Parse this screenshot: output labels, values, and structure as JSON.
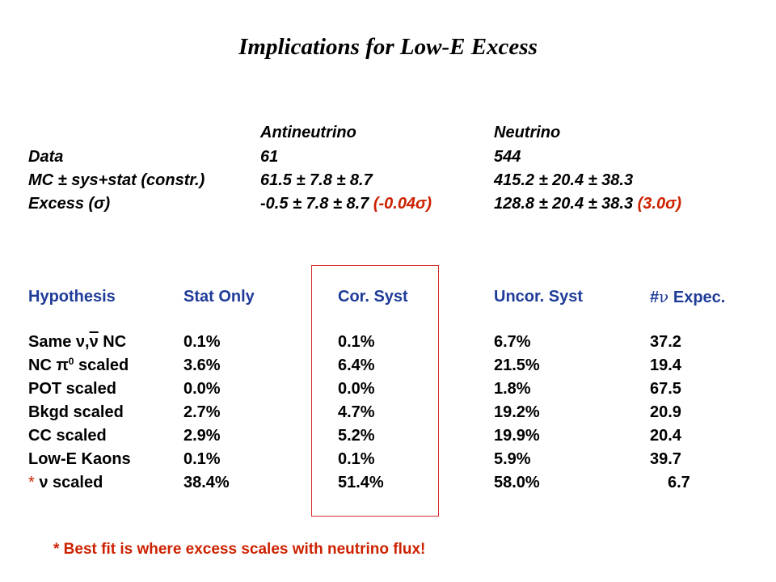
{
  "title": "Implications for Low-E Excess",
  "summary": {
    "col_headers": [
      "Antineutrino",
      "Neutrino"
    ],
    "rows": [
      {
        "label": "Data",
        "anti": "61",
        "nu": "544"
      },
      {
        "label": "MC ± sys+stat (constr.)",
        "anti": "61.5 ± 7.8 ± 8.7",
        "nu": "415.2 ± 20.4 ± 38.3"
      },
      {
        "label": "Excess (σ)",
        "anti": "-0.5 ± 7.8 ± 8.7 ",
        "anti_sig": "(-0.04σ)",
        "nu": "128.8 ± 20.4 ± 38.3 ",
        "nu_sig": "(3.0σ)"
      }
    ]
  },
  "hyp": {
    "headers": {
      "hypothesis": "Hypothesis",
      "stat": "Stat Only",
      "cor": "Cor. Syst",
      "uncor": "Uncor. Syst",
      "expec_prefix": "#",
      "expec_nu": "ν",
      "expec_suffix": " Expec."
    },
    "rows": [
      {
        "label_pre": "Same ν,",
        "label_nubar": "ν",
        "label_post": " NC",
        "stat": "0.1%",
        "cor": "0.1%",
        "uncor": "6.7%",
        "expec": "37.2"
      },
      {
        "label_pre": "NC π",
        "label_sup": "0",
        "label_post": " scaled",
        "stat": "3.6%",
        "cor": "6.4%",
        "uncor": "21.5%",
        "expec": "19.4"
      },
      {
        "label": "POT scaled",
        "stat": "0.0%",
        "cor": "0.0%",
        "uncor": "1.8%",
        "expec": "67.5"
      },
      {
        "label": "Bkgd scaled",
        "stat": "2.7%",
        "cor": "4.7%",
        "uncor": "19.2%",
        "expec": "20.9"
      },
      {
        "label": "CC scaled",
        "stat": "2.9%",
        "cor": "5.2%",
        "uncor": "19.9%",
        "expec": "20.4"
      },
      {
        "label": "Low-E Kaons",
        "stat": "0.1%",
        "cor": "0.1%",
        "uncor": "5.9%",
        "expec": "39.7"
      },
      {
        "label_star": "*",
        "label_post": " ν scaled",
        "stat": "38.4%",
        "cor": "51.4%",
        "uncor": "58.0%",
        "expec": "6.7"
      }
    ]
  },
  "footer": "* Best fit is where excess scales with neutrino flux!",
  "colors": {
    "red": "#cc2200",
    "blue": "#1f3c99",
    "box": "#d62a2a"
  }
}
